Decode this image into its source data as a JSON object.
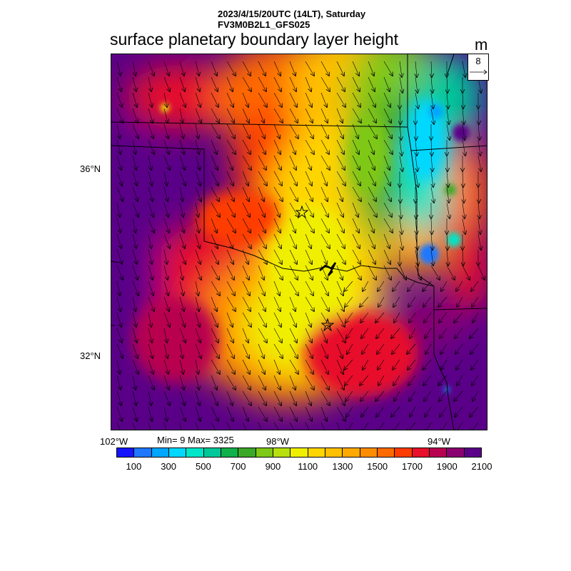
{
  "header": {
    "line1": "2023/4/15/20UTC (14LT), Saturday",
    "line2": "FV3M0B2L1_GFS025"
  },
  "title": "surface planetary boundary layer height",
  "units": "m",
  "vector_reference": {
    "value": "8"
  },
  "axes": {
    "lat_labels": [
      "36°N",
      "32°N"
    ],
    "lon_labels": [
      "102°W",
      "98°W",
      "94°W"
    ]
  },
  "stats": {
    "text": "Min= 9 Max= 3325"
  },
  "colorbar": {
    "colors": [
      "#1414ff",
      "#1f78ff",
      "#00a6ff",
      "#00d8ff",
      "#00e6c8",
      "#00c89a",
      "#10b04a",
      "#3ca828",
      "#7ec818",
      "#b8e010",
      "#f0ef00",
      "#ffd500",
      "#ffc000",
      "#ffa800",
      "#ff8c00",
      "#ff6a00",
      "#ff3c00",
      "#e8102a",
      "#b80050",
      "#8a0070",
      "#5a0088"
    ],
    "labels": [
      "100",
      "300",
      "500",
      "700",
      "900",
      "1100",
      "1300",
      "1500",
      "1700",
      "1900",
      "2100"
    ]
  },
  "stations": [
    {
      "name": "station-star-oklahoma"
    },
    {
      "name": "station-star-texas"
    }
  ]
}
